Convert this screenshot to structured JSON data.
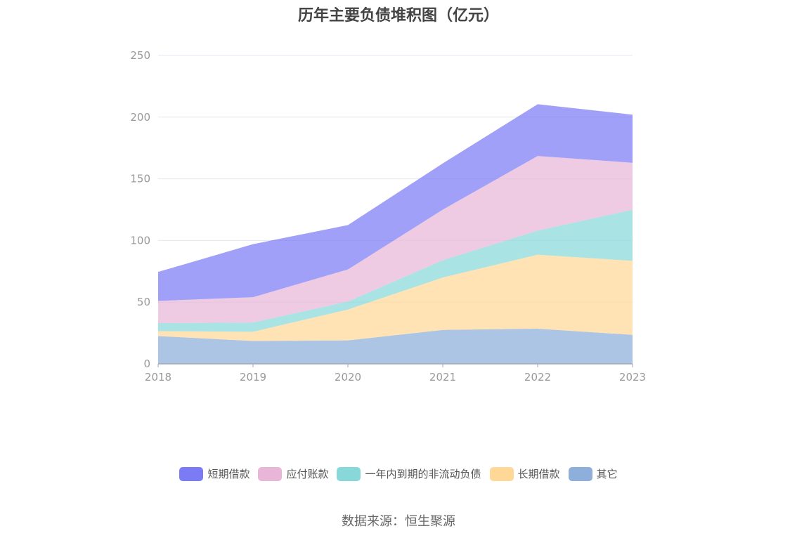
{
  "chart_data": {
    "type": "area",
    "stacked": true,
    "title": "历年主要负债堆积图（亿元）",
    "categories": [
      "2018",
      "2019",
      "2020",
      "2021",
      "2022",
      "2023"
    ],
    "ylim": [
      0,
      250
    ],
    "yticks": [
      0,
      50,
      100,
      150,
      200,
      250
    ],
    "grid": true,
    "legend_position": "bottom",
    "series": [
      {
        "name": "其它",
        "color": "#8eaedb",
        "values": [
          22.5,
          18.5,
          19,
          27.5,
          28.5,
          23.5
        ]
      },
      {
        "name": "长期借款",
        "color": "#ffd898",
        "values": [
          4,
          7.5,
          25,
          42.5,
          60,
          60
        ]
      },
      {
        "name": "一年内到期的非流动负债",
        "color": "#88d8da",
        "values": [
          6.5,
          7.5,
          6.5,
          14,
          19.5,
          41.5
        ]
      },
      {
        "name": "应付账款",
        "color": "#e8b7d8",
        "values": [
          18,
          20.5,
          26,
          41,
          60.5,
          38
        ]
      },
      {
        "name": "短期借款",
        "color": "#7b7cf5",
        "values": [
          23.5,
          43,
          36,
          37.5,
          42,
          39
        ]
      }
    ]
  },
  "source": "数据来源：恒生聚源"
}
